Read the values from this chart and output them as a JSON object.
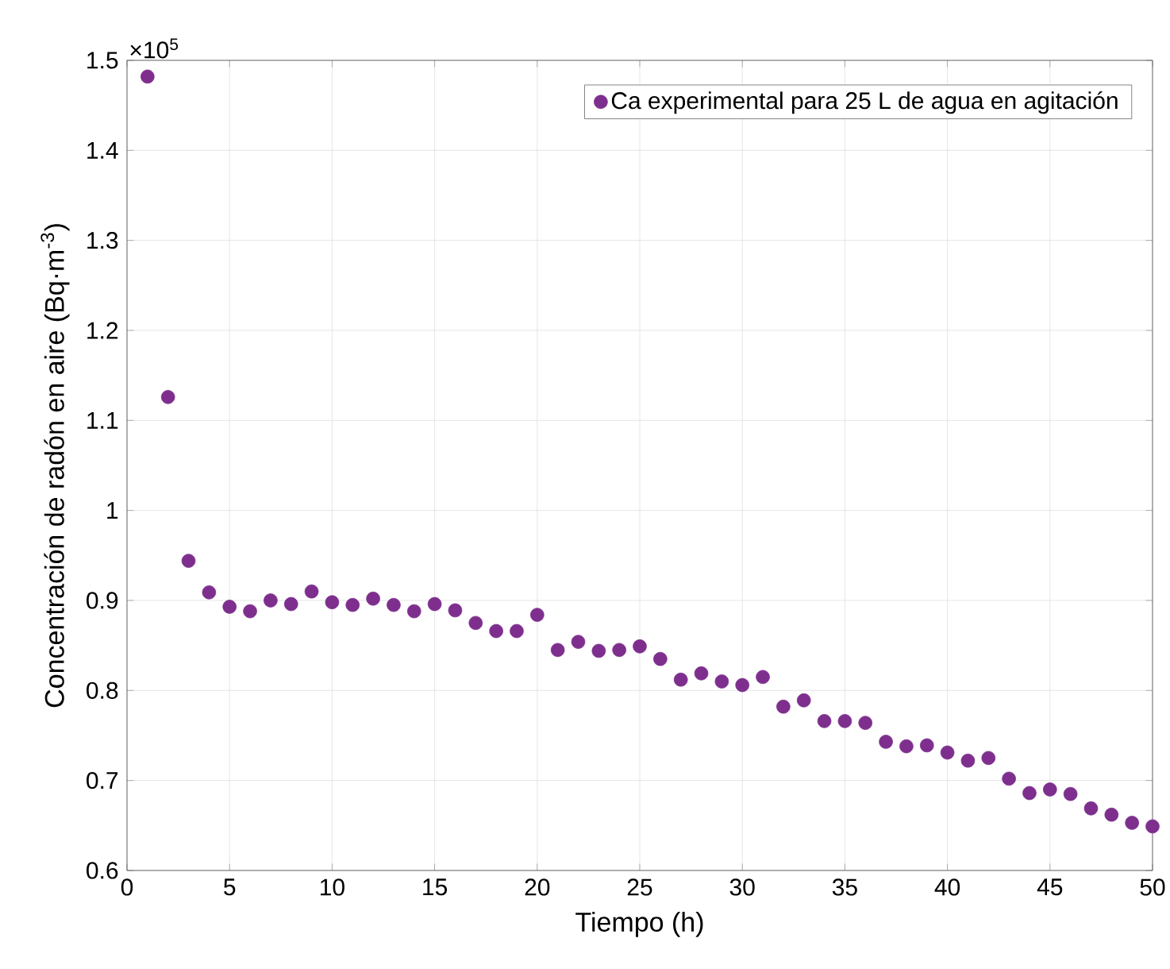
{
  "chart_data": {
    "type": "scatter",
    "xlabel": "Tiempo (h)",
    "ylabel": "Concentración de radón en aire (Bq·m$^{-3}$)",
    "annotations": [
      "×10$^{5}$"
    ],
    "x": [
      1,
      2,
      3,
      4,
      5,
      6,
      7,
      8,
      9,
      10,
      11,
      12,
      13,
      14,
      15,
      16,
      17,
      18,
      19,
      20,
      21,
      22,
      23,
      24,
      25,
      26,
      27,
      28,
      29,
      30,
      31,
      32,
      33,
      34,
      35,
      36,
      37,
      38,
      39,
      40,
      41,
      42,
      43,
      44,
      45,
      46,
      47,
      48,
      49,
      50
    ],
    "series": [
      {
        "name": "Ca experimental para 25 L de agua en agitación",
        "color": "#7e2f8e",
        "values": [
          1.482,
          1.126,
          0.944,
          0.909,
          0.893,
          0.888,
          0.9,
          0.896,
          0.91,
          0.898,
          0.895,
          0.902,
          0.895,
          0.888,
          0.896,
          0.889,
          0.875,
          0.866,
          0.866,
          0.884,
          0.845,
          0.854,
          0.844,
          0.845,
          0.849,
          0.835,
          0.812,
          0.819,
          0.81,
          0.806,
          0.815,
          0.782,
          0.789,
          0.766,
          0.766,
          0.764,
          0.743,
          0.738,
          0.739,
          0.731,
          0.722,
          0.725,
          0.702,
          0.686,
          0.69,
          0.685,
          0.669,
          0.662,
          0.653,
          0.649
        ]
      }
    ],
    "xlim": [
      0,
      50
    ],
    "ylim": [
      0.6,
      1.5
    ],
    "xticks": [
      0,
      5,
      10,
      15,
      20,
      25,
      30,
      35,
      40,
      45,
      50
    ],
    "yticks": [
      0.6,
      0.7,
      0.8,
      0.9,
      1,
      1.1,
      1.2,
      1.3,
      1.4,
      1.5
    ],
    "grid": true,
    "legend": "top right",
    "marker": "circle"
  }
}
